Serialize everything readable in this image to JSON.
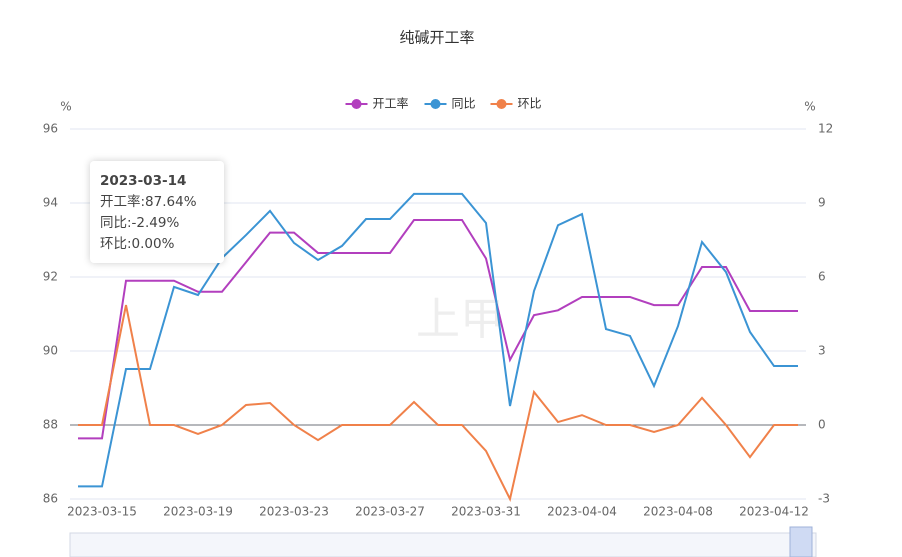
{
  "chart_data": {
    "type": "line",
    "title": "纯碱开工率",
    "y_label": "%",
    "y2_label": "%",
    "categories": [
      null,
      "2023-03-15",
      null,
      null,
      null,
      "2023-03-19",
      null,
      null,
      null,
      "2023-03-23",
      null,
      null,
      null,
      "2023-03-27",
      null,
      null,
      null,
      "2023-03-31",
      null,
      null,
      null,
      "2023-04-04",
      null,
      null,
      null,
      "2023-04-08",
      null,
      null,
      null,
      "2023-04-12",
      null
    ],
    "ylim": [
      86,
      96
    ],
    "yticks": [
      86,
      88,
      90,
      92,
      94,
      96
    ],
    "y2lim": [
      -3,
      12
    ],
    "y2ticks": [
      -3,
      0,
      3,
      6,
      9,
      12
    ],
    "grid": true,
    "legend": "top",
    "series": [
      {
        "name": "开工率",
        "color": "#b23fbe",
        "values": [
          87.64,
          87.64,
          91.9,
          91.9,
          91.9,
          91.6,
          91.6,
          92.4,
          93.2,
          93.2,
          92.65,
          92.65,
          92.65,
          92.65,
          93.54,
          93.54,
          93.54,
          92.5,
          89.76,
          90.97,
          91.1,
          91.46,
          91.46,
          91.46,
          91.24,
          91.24,
          92.27,
          92.27,
          91.08,
          91.08,
          91.08
        ]
      },
      {
        "name": "同比",
        "color": "#3b94d4",
        "axis": "y2",
        "values": [
          -2.49,
          -2.49,
          2.27,
          2.27,
          5.6,
          5.27,
          6.77,
          7.7,
          8.68,
          7.38,
          6.69,
          7.26,
          8.35,
          8.35,
          9.37,
          9.37,
          9.37,
          8.19,
          0.77,
          5.43,
          8.1,
          8.55,
          3.89,
          3.61,
          1.58,
          4.01,
          7.42,
          6.2,
          3.77,
          2.39,
          2.39
        ]
      },
      {
        "name": "环比",
        "color": "#f0814a",
        "axis": "y2",
        "values": [
          0,
          0,
          4.86,
          0,
          0,
          -0.36,
          0,
          0.81,
          0.89,
          0,
          -0.61,
          0,
          0,
          0,
          0.93,
          0,
          0,
          -1.05,
          -3,
          1.34,
          0.12,
          0.4,
          0,
          0,
          -0.28,
          0,
          1.1,
          0,
          -1.3,
          0,
          0
        ]
      }
    ],
    "watermark": "上甲",
    "tooltip": {
      "date": "2023-03-14",
      "lines": [
        "开工率:87.64%",
        "同比:-2.49%",
        "环比:0.00%"
      ]
    }
  }
}
